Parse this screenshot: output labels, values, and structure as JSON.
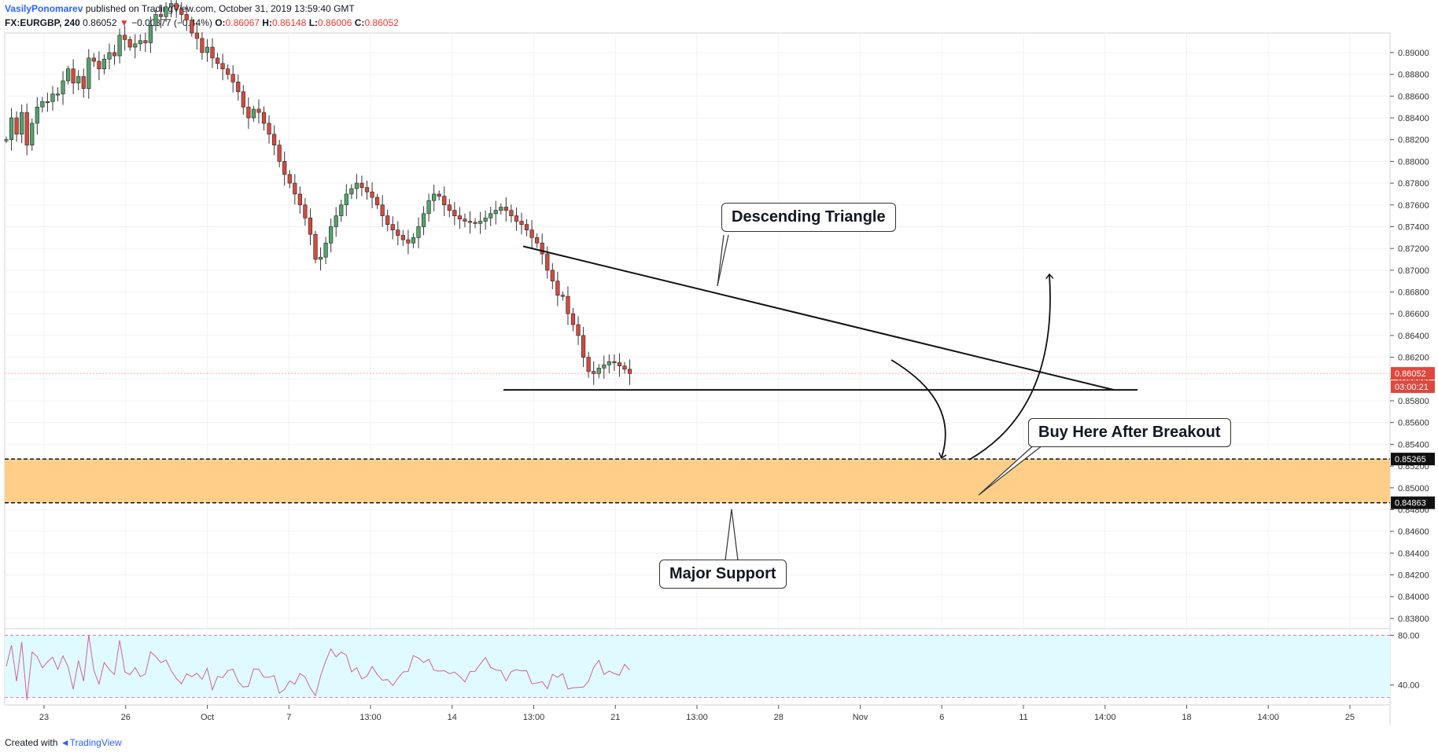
{
  "header": {
    "author": "VasilyPonomarev",
    "published": "published on TradingView.com, October 31, 2019 13:59:40 GMT",
    "symbol": "FX:EURGBP, 240",
    "last": "0.86052",
    "change_arrow": "▼",
    "change": "−0.00377 (−0.44%)",
    "open_label": "O:",
    "open": "0.86067",
    "high_label": "H:",
    "high": "0.86148",
    "low_label": "L:",
    "low": "0.86006",
    "close_label": "C:",
    "close": "0.86052"
  },
  "footer": {
    "created_with": "Created with",
    "brand": "TradingView"
  },
  "colors": {
    "up": "#53a36b",
    "down": "#d44a3e",
    "zone_fill": "#ffcf8a",
    "rsi_fill": "#e0fbff",
    "rsi_line": "#d15fa8",
    "price_tag": "#e0473d"
  },
  "annotations": {
    "triangle": "Descending Triangle",
    "breakout": "Buy Here After Breakout",
    "support": "Major Support"
  },
  "chart_data": {
    "type": "candlestick",
    "x_tick_labels": [
      "23",
      "26",
      "Oct",
      "7",
      "13:00",
      "14",
      "13:00",
      "21",
      "13:00",
      "28",
      "Nov",
      "6",
      "11",
      "14:00",
      "18",
      "14:00",
      "25"
    ],
    "y_tick_labels": [
      "0.89000",
      "0.88800",
      "0.88600",
      "0.88400",
      "0.88200",
      "0.88000",
      "0.87800",
      "0.87600",
      "0.87400",
      "0.87200",
      "0.87000",
      "0.86800",
      "0.86600",
      "0.86400",
      "0.86200",
      "0.86000",
      "0.85800",
      "0.85600",
      "0.85400",
      "0.85200",
      "0.85000",
      "0.84800",
      "0.84600",
      "0.84400",
      "0.84200",
      "0.84000",
      "0.83800"
    ],
    "ylim": [
      0.8372,
      0.8918
    ],
    "last_price": "0.86052",
    "countdown": "03:00:21",
    "zone_top": "0.85265",
    "zone_bottom": "0.84863",
    "support_line": 0.859,
    "trendline": [
      [
        0.8722,
        0.859
      ]
    ],
    "rsi": {
      "ticks": [
        "80.00",
        "40.00"
      ],
      "upper": 80,
      "lower": 30,
      "ylim": [
        24,
        84
      ]
    },
    "close_path": [
      0.882,
      0.884,
      0.8825,
      0.8845,
      0.8815,
      0.8835,
      0.885,
      0.8855,
      0.8855,
      0.8862,
      0.8862,
      0.8874,
      0.8885,
      0.8872,
      0.8878,
      0.8867,
      0.8895,
      0.8892,
      0.8885,
      0.8894,
      0.89,
      0.8897,
      0.8916,
      0.8912,
      0.8905,
      0.8908,
      0.8911,
      0.8909,
      0.8925,
      0.8935,
      0.8933,
      0.8942,
      0.8945,
      0.894,
      0.8935,
      0.893,
      0.8918,
      0.8913,
      0.89,
      0.8905,
      0.8895,
      0.889,
      0.8885,
      0.888,
      0.8873,
      0.8864,
      0.885,
      0.884,
      0.8848,
      0.8845,
      0.8835,
      0.8825,
      0.8815,
      0.88,
      0.8788,
      0.878,
      0.877,
      0.876,
      0.8748,
      0.8733,
      0.871,
      0.8712,
      0.8725,
      0.874,
      0.875,
      0.876,
      0.877,
      0.8775,
      0.878,
      0.8776,
      0.8772,
      0.8767,
      0.876,
      0.875,
      0.8742,
      0.8737,
      0.8732,
      0.8728,
      0.8725,
      0.873,
      0.874,
      0.8752,
      0.8764,
      0.877,
      0.8768,
      0.876,
      0.8755,
      0.875,
      0.8747,
      0.8745,
      0.8744,
      0.8743,
      0.8745,
      0.8748,
      0.8752,
      0.8755,
      0.8758,
      0.8755,
      0.875,
      0.8745,
      0.8742,
      0.8737,
      0.873,
      0.8725,
      0.8715,
      0.87,
      0.869,
      0.8677,
      0.8676,
      0.866,
      0.865,
      0.864,
      0.862,
      0.8607,
      0.8605,
      0.861,
      0.8613,
      0.8616,
      0.8615,
      0.8612,
      0.8609,
      0.8605
    ]
  }
}
